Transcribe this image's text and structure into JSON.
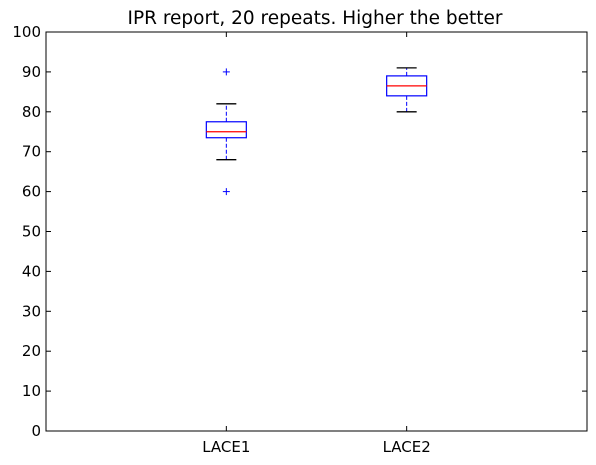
{
  "chart_data": {
    "type": "box",
    "title": "IPR report, 20 repeats. Higher the better",
    "xlabel": "",
    "ylabel": "",
    "categories": [
      "LACE1",
      "LACE2"
    ],
    "ylim": [
      0,
      100
    ],
    "yticks": [
      0,
      10,
      20,
      30,
      40,
      50,
      60,
      70,
      80,
      90,
      100
    ],
    "grid": false,
    "boxes": [
      {
        "category": "LACE1",
        "whisker_low": 68,
        "q1": 73.5,
        "median": 75,
        "q3": 77.5,
        "whisker_high": 82,
        "outliers": [
          90,
          60
        ]
      },
      {
        "category": "LACE2",
        "whisker_low": 80,
        "q1": 84,
        "median": 86.5,
        "q3": 89,
        "whisker_high": 91,
        "outliers": []
      }
    ],
    "colors": {
      "box": "#0000ff",
      "median": "#ff0000",
      "whisker_cap": "#000000",
      "outlier": "#0000ff",
      "axes": "#000000"
    }
  }
}
